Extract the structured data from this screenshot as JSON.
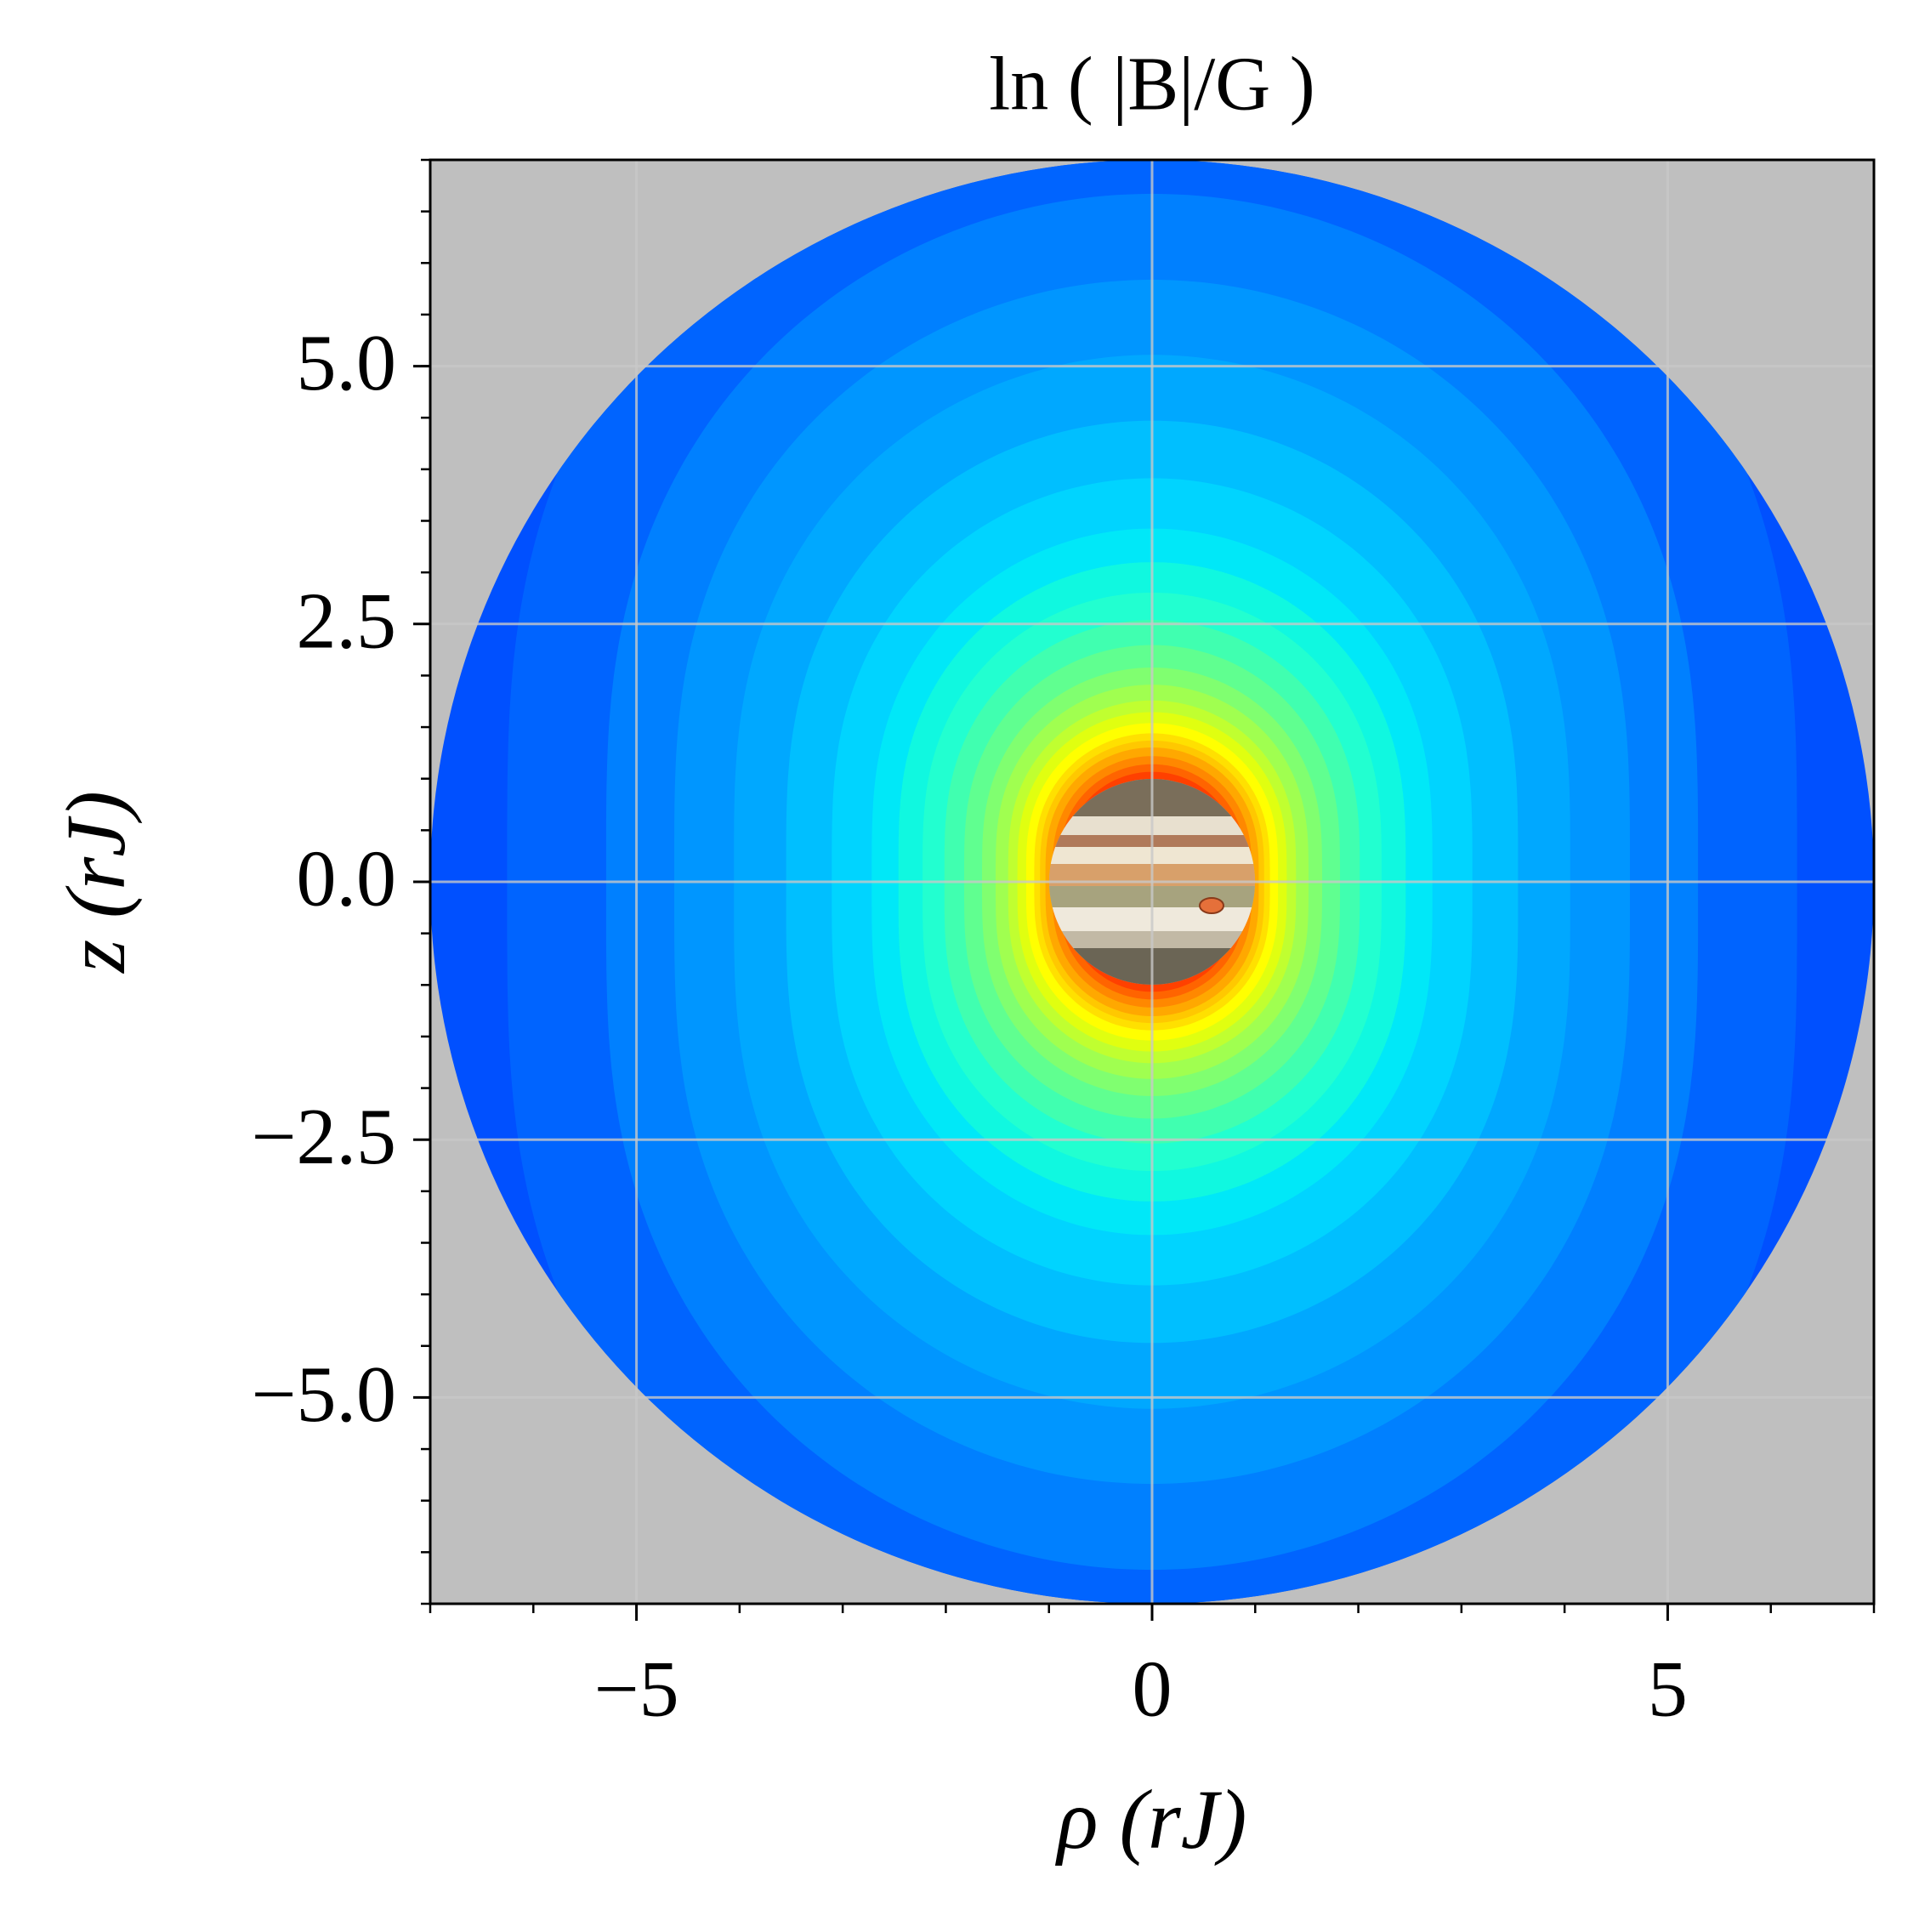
{
  "chart_data": {
    "type": "contour",
    "title": "ln ( |B|/G )",
    "xlabel": "ρ (rJ)",
    "ylabel": "z (rJ)",
    "xlim": [
      -7,
      7
    ],
    "ylim": [
      -7,
      7
    ],
    "xticks": [
      {
        "value": -5,
        "label": "−5"
      },
      0,
      5
    ],
    "yticks": [
      {
        "value": -5,
        "label": "−5.0"
      },
      {
        "value": -2.5,
        "label": "−2.5"
      },
      {
        "value": 0,
        "label": "0.0"
      },
      2.5,
      {
        "value": 5,
        "label": "5.0"
      }
    ],
    "xminorticks": [
      -7,
      -6,
      -5,
      -4,
      -3,
      -2,
      -1,
      0,
      1,
      2,
      3,
      4,
      5,
      6,
      7
    ],
    "yminorticks": [
      -7,
      -6.5,
      -6,
      -5.5,
      -5,
      -4.5,
      -4,
      -3.5,
      -3,
      -2.5,
      -2,
      -1.5,
      -1,
      -0.5,
      0,
      0.5,
      1,
      1.5,
      2,
      2.5,
      3,
      3.5,
      4,
      4.5,
      5,
      5.5,
      6,
      6.5,
      7
    ],
    "grid": true,
    "background": "#bfbfbf",
    "levels": [
      -6.0,
      -5.5,
      -5.0,
      -4.6,
      -4.2,
      -3.8,
      -3.4,
      -3.0,
      -2.7,
      -2.4,
      -2.1,
      -1.8,
      -1.5,
      -1.25,
      -1.0,
      -0.8,
      -0.6,
      -0.4,
      -0.25,
      -0.1,
      0.1,
      0.3,
      0.5
    ],
    "colors": [
      "#0050ff",
      "#0064ff",
      "#0080ff",
      "#0096ff",
      "#00a8ff",
      "#00bfff",
      "#00d4ff",
      "#00e8f8",
      "#10f8e0",
      "#22ffd0",
      "#40ffb0",
      "#60ff90",
      "#80ff70",
      "#a0ff50",
      "#c0ff30",
      "#e0ff10",
      "#ffff00",
      "#ffe000",
      "#ffc800",
      "#ffa800",
      "#ff8800",
      "#ff6400",
      "#ff4000"
    ]
  }
}
